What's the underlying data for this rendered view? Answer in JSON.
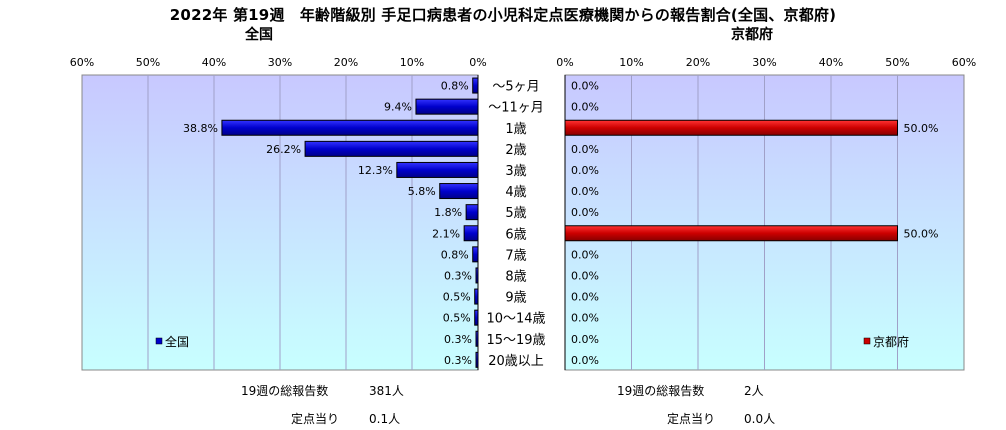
{
  "title": "2022年 第19週　年齢階級別 手足口病患者の小児科定点医療機関からの報告割合(全国、京都府)",
  "chart_data": [
    {
      "type": "bar",
      "orientation": "horizontal",
      "direction": "right-to-left",
      "subtitle": "全国",
      "categories": [
        "～5ヶ月",
        "～11ヶ月",
        "1歳",
        "2歳",
        "3歳",
        "4歳",
        "5歳",
        "6歳",
        "7歳",
        "8歳",
        "9歳",
        "10～14歳",
        "15～19歳",
        "20歳以上"
      ],
      "series": [
        {
          "name": "全国",
          "color": "#0000cc",
          "values": [
            0.8,
            9.4,
            38.8,
            26.2,
            12.3,
            5.8,
            1.8,
            2.1,
            0.8,
            0.3,
            0.5,
            0.5,
            0.3,
            0.3
          ],
          "labels": [
            "0.8%",
            "9.4%",
            "38.8%",
            "26.2%",
            "12.3%",
            "5.8%",
            "1.8%",
            "2.1%",
            "0.8%",
            "0.3%",
            "0.5%",
            "0.5%",
            "0.3%",
            "0.3%"
          ]
        }
      ],
      "xlim": [
        0,
        60
      ],
      "ticks": [
        "60%",
        "50%",
        "40%",
        "30%",
        "20%",
        "10%",
        "0%"
      ],
      "legend_position": "bottom-left",
      "grid": true,
      "plot_background": "gradient #c8c8ff to #c8ffff"
    },
    {
      "type": "bar",
      "orientation": "horizontal",
      "direction": "left-to-right",
      "subtitle": "京都府",
      "categories": [
        "～5ヶ月",
        "～11ヶ月",
        "1歳",
        "2歳",
        "3歳",
        "4歳",
        "5歳",
        "6歳",
        "7歳",
        "8歳",
        "9歳",
        "10～14歳",
        "15～19歳",
        "20歳以上"
      ],
      "series": [
        {
          "name": "京都府",
          "color": "#cc0000",
          "values": [
            0,
            0,
            50,
            0,
            0,
            0,
            0,
            50,
            0,
            0,
            0,
            0,
            0,
            0
          ],
          "labels": [
            "0.0%",
            "0.0%",
            "50.0%",
            "0.0%",
            "0.0%",
            "0.0%",
            "0.0%",
            "50.0%",
            "0.0%",
            "0.0%",
            "0.0%",
            "0.0%",
            "0.0%",
            "0.0%"
          ]
        }
      ],
      "xlim": [
        0,
        60
      ],
      "ticks": [
        "0%",
        "10%",
        "20%",
        "30%",
        "40%",
        "50%",
        "60%"
      ],
      "legend_position": "bottom-right",
      "grid": true,
      "plot_background": "gradient #c8c8ff to #c8ffff"
    }
  ],
  "summary": {
    "national": {
      "total_label": "19週の総報告数",
      "total_value": "381人",
      "per_label": "定点当り",
      "per_value": "0.1人"
    },
    "kyoto": {
      "total_label": "19週の総報告数",
      "total_value": "2人",
      "per_label": "定点当り",
      "per_value": "0.0人"
    }
  }
}
